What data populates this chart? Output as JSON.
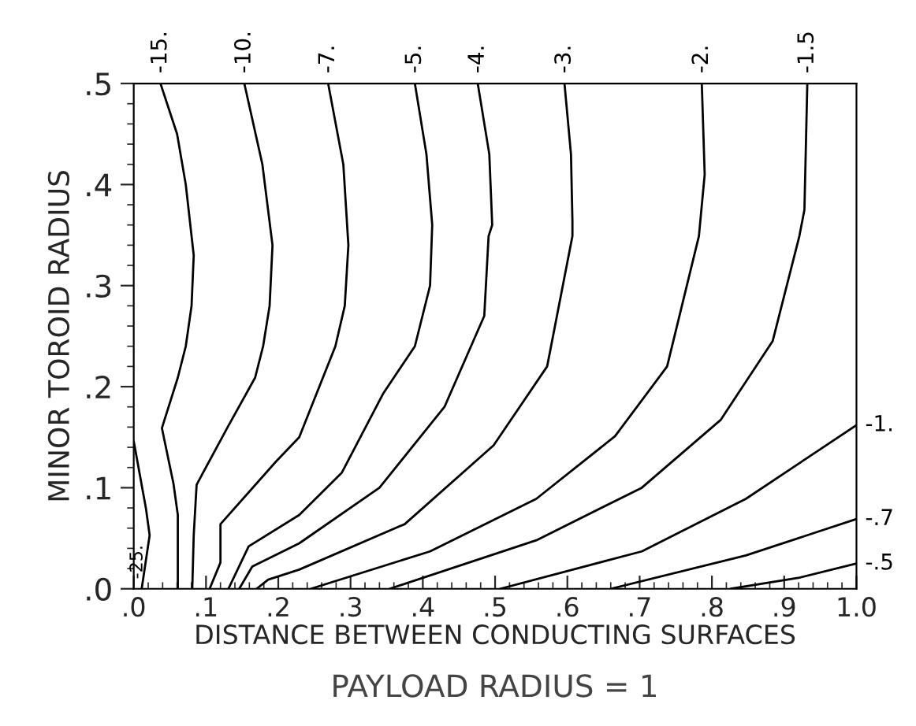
{
  "chart_data": {
    "type": "line",
    "xlabel": "DISTANCE BETWEEN CONDUCTING SURFACES",
    "ylabel": "MINOR TOROID RADIUS",
    "annotations": [
      "PAYLOAD RADIUS = 1"
    ],
    "xlim": [
      0,
      1.0
    ],
    "ylim": [
      0,
      0.5
    ],
    "xticks": [
      {
        "value": 0,
        "label": ".0"
      },
      {
        "value": 0.1,
        "label": ".1"
      },
      {
        "value": 0.2,
        "label": ".2"
      },
      {
        "value": 0.3,
        "label": ".3"
      },
      {
        "value": 0.4,
        "label": ".4"
      },
      {
        "value": 0.5,
        "label": ".5"
      },
      {
        "value": 0.6,
        "label": ".6"
      },
      {
        "value": 0.7,
        "label": ".7"
      },
      {
        "value": 0.8,
        "label": ".8"
      },
      {
        "value": 0.9,
        "label": ".9"
      },
      {
        "value": 1.0,
        "label": "1.0"
      }
    ],
    "yticks": [
      {
        "value": 0,
        "label": ".0"
      },
      {
        "value": 0.1,
        "label": ".1"
      },
      {
        "value": 0.2,
        "label": ".2"
      },
      {
        "value": 0.3,
        "label": ".3"
      },
      {
        "value": 0.4,
        "label": ".4"
      },
      {
        "value": 0.5,
        "label": ".5"
      }
    ],
    "grid": false,
    "legend": false,
    "marker": "none",
    "line_style": "solid",
    "series": [
      {
        "name": "-25.",
        "color": "#000000",
        "x": [
          0.0,
          0.017,
          0.022,
          0.011
        ],
        "values": [
          0.146,
          0.079,
          0.053,
          0.0
        ]
      },
      {
        "name": "-15.",
        "color": "#000000",
        "x": [
          0.037,
          0.06,
          0.072,
          0.083,
          0.08,
          0.072,
          0.061,
          0.039,
          0.055,
          0.061,
          0.061
        ],
        "values": [
          0.5,
          0.45,
          0.4,
          0.33,
          0.28,
          0.24,
          0.209,
          0.159,
          0.104,
          0.073,
          0.0
        ]
      },
      {
        "name": "-10.",
        "color": "#000000",
        "x": [
          0.153,
          0.178,
          0.192,
          0.188,
          0.179,
          0.168,
          0.13,
          0.087,
          0.083,
          0.081
        ],
        "values": [
          0.5,
          0.42,
          0.34,
          0.28,
          0.24,
          0.209,
          0.16,
          0.103,
          0.053,
          0.0
        ]
      },
      {
        "name": "-7.",
        "color": "#000000",
        "x": [
          0.269,
          0.29,
          0.297,
          0.292,
          0.279,
          0.229,
          0.197,
          0.12,
          0.12,
          0.105
        ],
        "values": [
          0.5,
          0.42,
          0.34,
          0.28,
          0.24,
          0.15,
          0.126,
          0.064,
          0.026,
          0.0
        ]
      },
      {
        "name": "-5.",
        "color": "#000000",
        "x": [
          0.389,
          0.405,
          0.413,
          0.41,
          0.389,
          0.345,
          0.288,
          0.229,
          0.159,
          0.131
        ],
        "values": [
          0.5,
          0.43,
          0.36,
          0.3,
          0.24,
          0.193,
          0.115,
          0.073,
          0.042,
          0.0
        ]
      },
      {
        "name": "-4.",
        "color": "#000000",
        "x": [
          0.476,
          0.492,
          0.496,
          0.491,
          0.485,
          0.43,
          0.34,
          0.229,
          0.164,
          0.146
        ],
        "values": [
          0.5,
          0.43,
          0.36,
          0.349,
          0.27,
          0.18,
          0.1,
          0.045,
          0.022,
          0.0
        ]
      },
      {
        "name": "-3.",
        "color": "#000000",
        "x": [
          0.596,
          0.605,
          0.607,
          0.607,
          0.572,
          0.498,
          0.375,
          0.229,
          0.186,
          0.17
        ],
        "values": [
          0.5,
          0.43,
          0.364,
          0.349,
          0.22,
          0.142,
          0.064,
          0.019,
          0.009,
          0.0
        ]
      },
      {
        "name": "-2.",
        "color": "#000000",
        "x": [
          0.786,
          0.79,
          0.782,
          0.738,
          0.666,
          0.557,
          0.41,
          0.245
        ],
        "values": [
          0.5,
          0.41,
          0.349,
          0.22,
          0.151,
          0.089,
          0.037,
          0.0
        ]
      },
      {
        "name": "-1.5",
        "color": "#000000",
        "x": [
          0.932,
          0.928,
          0.921,
          0.884,
          0.812,
          0.703,
          0.557,
          0.354
        ],
        "values": [
          0.5,
          0.375,
          0.349,
          0.245,
          0.167,
          0.1,
          0.048,
          0.0
        ]
      },
      {
        "name": "-1.",
        "color": "#000000",
        "x": [
          1.0,
          0.847,
          0.703,
          0.507
        ],
        "values": [
          0.162,
          0.089,
          0.037,
          0.0
        ]
      },
      {
        "name": "-.7",
        "color": "#000000",
        "x": [
          1.0,
          0.847,
          0.66
        ],
        "values": [
          0.069,
          0.033,
          0.0
        ]
      },
      {
        "name": "-.5",
        "color": "#000000",
        "x": [
          1.0,
          0.921,
          0.826
        ],
        "values": [
          0.025,
          0.011,
          0.0
        ]
      }
    ]
  }
}
